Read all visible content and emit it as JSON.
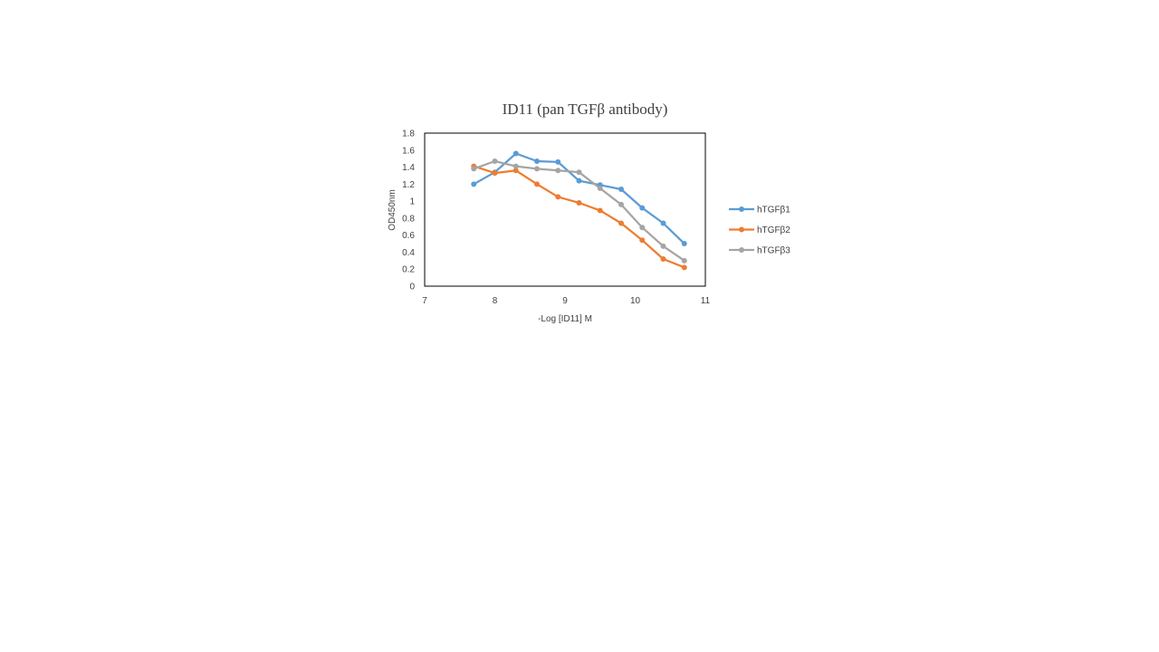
{
  "chart_data": {
    "type": "line",
    "title": "ID11 (pan TGFβ antibody)",
    "xlabel": "-Log [ID11] M",
    "ylabel": "OD450nm",
    "xlim": [
      7,
      11
    ],
    "ylim": [
      0,
      1.8
    ],
    "x_ticks": [
      "7",
      "8",
      "9",
      "10",
      "11"
    ],
    "y_ticks": [
      "0",
      "0.2",
      "0.4",
      "0.6",
      "0.8",
      "1",
      "1.2",
      "1.4",
      "1.6",
      "1.8"
    ],
    "grid": false,
    "legend_position": "right",
    "series": [
      {
        "name": "hTGFβ1",
        "color": "#5b9bd5",
        "x": [
          7.7,
          8.0,
          8.3,
          8.6,
          8.9,
          9.2,
          9.5,
          9.8,
          10.1,
          10.4,
          10.7
        ],
        "y": [
          1.2,
          1.34,
          1.56,
          1.47,
          1.46,
          1.24,
          1.19,
          1.14,
          0.92,
          0.74,
          0.5
        ]
      },
      {
        "name": "hTGFβ2",
        "color": "#ed7d31",
        "x": [
          7.7,
          8.0,
          8.3,
          8.6,
          8.9,
          9.2,
          9.5,
          9.8,
          10.1,
          10.4,
          10.7
        ],
        "y": [
          1.41,
          1.33,
          1.36,
          1.2,
          1.05,
          0.98,
          0.89,
          0.74,
          0.54,
          0.32,
          0.22
        ]
      },
      {
        "name": "hTGFβ3",
        "color": "#a5a5a5",
        "x": [
          7.7,
          8.0,
          8.3,
          8.6,
          8.9,
          9.2,
          9.5,
          9.8,
          10.1,
          10.4,
          10.7
        ],
        "y": [
          1.38,
          1.47,
          1.41,
          1.38,
          1.36,
          1.34,
          1.15,
          0.96,
          0.69,
          0.47,
          0.3
        ]
      }
    ]
  }
}
